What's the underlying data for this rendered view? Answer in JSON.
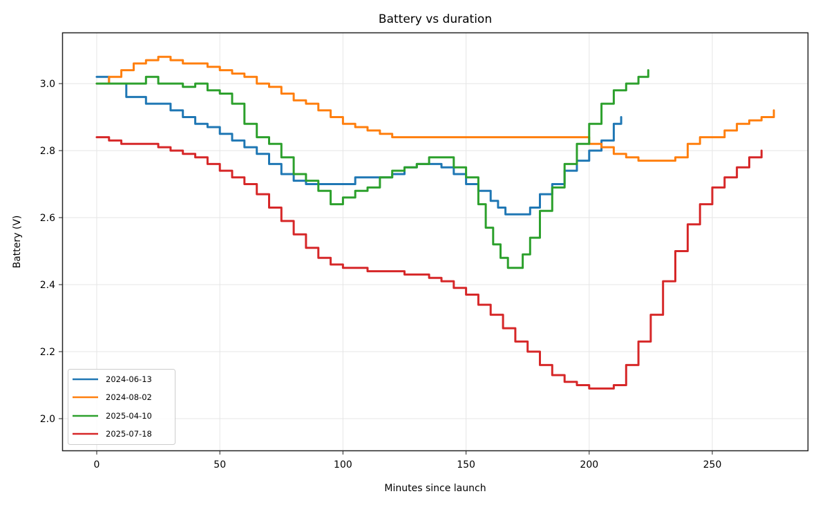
{
  "chart_data": {
    "type": "line",
    "title": "Battery vs duration",
    "xlabel": "Minutes since launch",
    "ylabel": "Battery (V)",
    "xlim": [
      -13,
      290
    ],
    "ylim": [
      1.91,
      3.16
    ],
    "xticks": [
      0,
      50,
      100,
      150,
      200,
      250
    ],
    "yticks": [
      2.0,
      2.2,
      2.4,
      2.6,
      2.8,
      3.0
    ],
    "xtick_labels": [
      "0",
      "50",
      "100",
      "150",
      "200",
      "250"
    ],
    "ytick_labels": [
      "2.0",
      "2.2",
      "2.4",
      "2.6",
      "2.8",
      "3.0"
    ],
    "grid": true,
    "legend_position": "lower left",
    "series": [
      {
        "name": "2024-06-13",
        "color": "#1f77b4",
        "x": [
          0,
          5,
          10,
          12,
          15,
          20,
          25,
          30,
          35,
          40,
          45,
          50,
          55,
          60,
          65,
          70,
          75,
          80,
          85,
          90,
          95,
          100,
          105,
          110,
          115,
          120,
          125,
          130,
          135,
          140,
          145,
          150,
          155,
          160,
          163,
          166,
          170,
          173,
          176,
          180,
          185,
          190,
          195,
          200,
          205,
          210,
          213
        ],
        "values": [
          3.02,
          3.0,
          3.0,
          2.96,
          2.96,
          2.94,
          2.94,
          2.92,
          2.9,
          2.88,
          2.87,
          2.85,
          2.83,
          2.81,
          2.79,
          2.76,
          2.73,
          2.71,
          2.7,
          2.7,
          2.7,
          2.7,
          2.72,
          2.72,
          2.72,
          2.73,
          2.75,
          2.76,
          2.76,
          2.75,
          2.73,
          2.7,
          2.68,
          2.65,
          2.63,
          2.61,
          2.61,
          2.61,
          2.63,
          2.67,
          2.7,
          2.74,
          2.77,
          2.8,
          2.83,
          2.88,
          2.9
        ]
      },
      {
        "name": "2024-08-02",
        "color": "#ff7f0e",
        "x": [
          0,
          5,
          10,
          15,
          20,
          25,
          30,
          35,
          40,
          45,
          50,
          55,
          60,
          65,
          70,
          75,
          80,
          85,
          90,
          95,
          100,
          105,
          110,
          115,
          120,
          130,
          140,
          150,
          160,
          170,
          180,
          190,
          195,
          200,
          205,
          210,
          215,
          220,
          225,
          230,
          235,
          240,
          245,
          250,
          255,
          260,
          265,
          270,
          275
        ],
        "values": [
          3.0,
          3.02,
          3.04,
          3.06,
          3.07,
          3.08,
          3.07,
          3.06,
          3.06,
          3.05,
          3.04,
          3.03,
          3.02,
          3.0,
          2.99,
          2.97,
          2.95,
          2.94,
          2.92,
          2.9,
          2.88,
          2.87,
          2.86,
          2.85,
          2.84,
          2.84,
          2.84,
          2.84,
          2.84,
          2.84,
          2.84,
          2.84,
          2.84,
          2.82,
          2.81,
          2.79,
          2.78,
          2.77,
          2.77,
          2.77,
          2.78,
          2.82,
          2.84,
          2.84,
          2.86,
          2.88,
          2.89,
          2.9,
          2.92
        ]
      },
      {
        "name": "2025-04-10",
        "color": "#2ca02c",
        "x": [
          0,
          5,
          10,
          15,
          20,
          25,
          30,
          35,
          40,
          45,
          50,
          55,
          60,
          65,
          70,
          75,
          80,
          85,
          90,
          95,
          100,
          105,
          110,
          115,
          120,
          125,
          130,
          135,
          140,
          145,
          150,
          155,
          158,
          161,
          164,
          167,
          170,
          173,
          176,
          180,
          185,
          190,
          195,
          200,
          205,
          210,
          215,
          220,
          224
        ],
        "values": [
          3.0,
          3.0,
          3.0,
          3.0,
          3.02,
          3.0,
          3.0,
          2.99,
          3.0,
          2.98,
          2.97,
          2.94,
          2.88,
          2.84,
          2.82,
          2.78,
          2.73,
          2.71,
          2.68,
          2.64,
          2.66,
          2.68,
          2.69,
          2.72,
          2.74,
          2.75,
          2.76,
          2.78,
          2.78,
          2.75,
          2.72,
          2.64,
          2.57,
          2.52,
          2.48,
          2.45,
          2.45,
          2.49,
          2.54,
          2.62,
          2.69,
          2.76,
          2.82,
          2.88,
          2.94,
          2.98,
          3.0,
          3.02,
          3.04
        ]
      },
      {
        "name": "2025-07-18",
        "color": "#d62728",
        "x": [
          0,
          5,
          10,
          15,
          20,
          25,
          30,
          35,
          40,
          45,
          50,
          55,
          60,
          65,
          70,
          75,
          80,
          85,
          90,
          95,
          100,
          105,
          110,
          115,
          120,
          125,
          130,
          135,
          140,
          145,
          150,
          155,
          160,
          165,
          170,
          175,
          180,
          185,
          190,
          195,
          200,
          205,
          210,
          215,
          220,
          225,
          230,
          235,
          240,
          245,
          250,
          255,
          260,
          265,
          270
        ],
        "values": [
          2.84,
          2.83,
          2.82,
          2.82,
          2.82,
          2.81,
          2.8,
          2.79,
          2.78,
          2.76,
          2.74,
          2.72,
          2.7,
          2.67,
          2.63,
          2.59,
          2.55,
          2.51,
          2.48,
          2.46,
          2.45,
          2.45,
          2.44,
          2.44,
          2.44,
          2.43,
          2.43,
          2.42,
          2.41,
          2.39,
          2.37,
          2.34,
          2.31,
          2.27,
          2.23,
          2.2,
          2.16,
          2.13,
          2.11,
          2.1,
          2.09,
          2.09,
          2.1,
          2.16,
          2.23,
          2.31,
          2.41,
          2.5,
          2.58,
          2.64,
          2.69,
          2.72,
          2.75,
          2.78,
          2.8
        ]
      }
    ]
  },
  "colors": {
    "axes": "#222222",
    "grid": "#e5e5e5",
    "legend_border": "#cccccc"
  }
}
